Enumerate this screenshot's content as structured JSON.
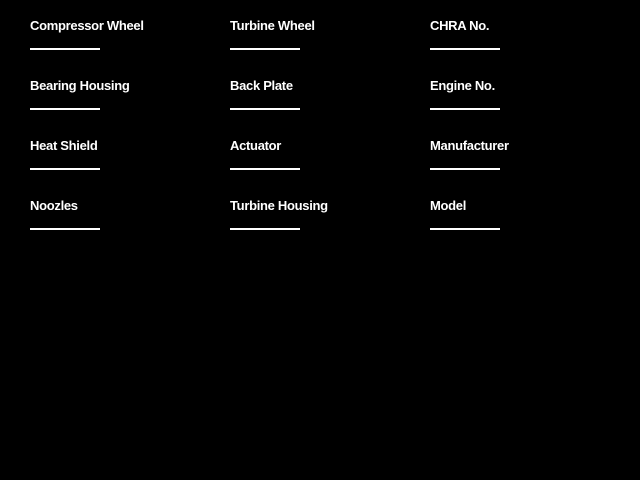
{
  "theme": {
    "background": "#000000",
    "text_color": "#ffffff",
    "line_color": "#ffffff"
  },
  "form": {
    "columns": [
      {
        "fields": [
          {
            "label": "Compressor Wheel",
            "value": ""
          },
          {
            "label": "Bearing Housing",
            "value": ""
          },
          {
            "label": "Heat Shield",
            "value": ""
          },
          {
            "label": "Noozles",
            "value": ""
          }
        ]
      },
      {
        "fields": [
          {
            "label": "Turbine Wheel",
            "value": ""
          },
          {
            "label": "Back Plate",
            "value": ""
          },
          {
            "label": "Actuator",
            "value": ""
          },
          {
            "label": "Turbine Housing",
            "value": ""
          }
        ]
      },
      {
        "fields": [
          {
            "label": "CHRA No.",
            "value": ""
          },
          {
            "label": "Engine No.",
            "value": ""
          },
          {
            "label": "Manufacturer",
            "value": ""
          },
          {
            "label": "Model",
            "value": ""
          }
        ]
      }
    ]
  }
}
